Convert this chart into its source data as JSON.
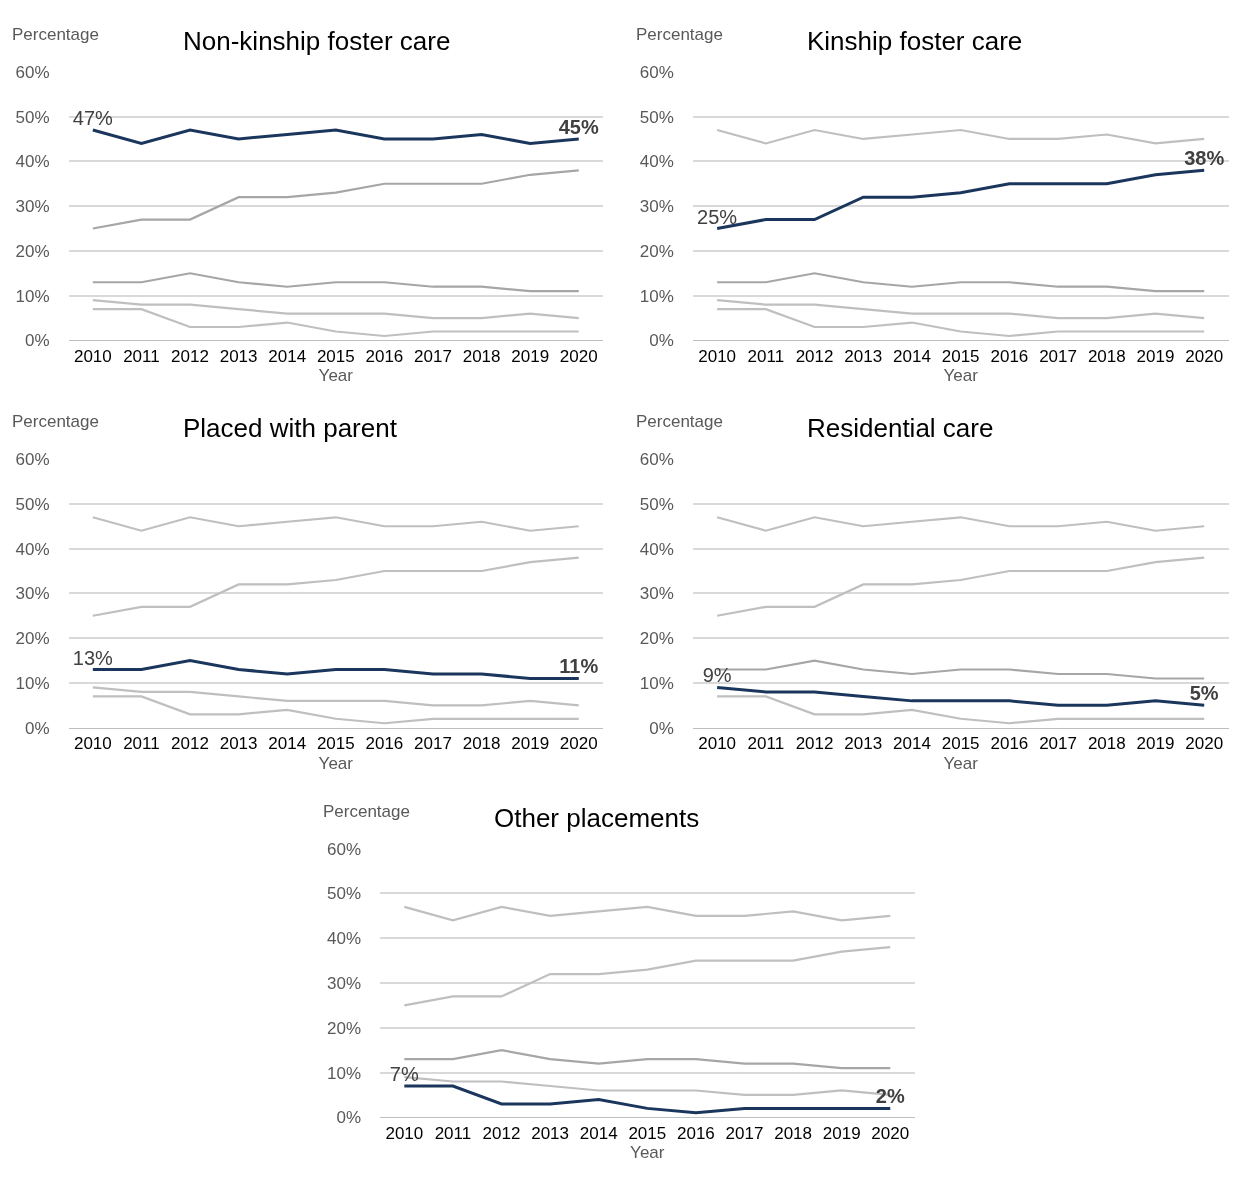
{
  "chart_data": [
    {
      "type": "line",
      "title": "Non-kinship foster care",
      "xlabel": "Year",
      "ylabel": "Percentage",
      "categories": [
        "2010",
        "2011",
        "2012",
        "2013",
        "2014",
        "2015",
        "2016",
        "2017",
        "2018",
        "2019",
        "2020"
      ],
      "ylim": [
        0,
        60
      ],
      "yticks": [
        {
          "value": 0,
          "label": "0%"
        },
        {
          "value": 10,
          "label": "10%"
        },
        {
          "value": 20,
          "label": "20%"
        },
        {
          "value": 30,
          "label": "30%"
        },
        {
          "value": 40,
          "label": "40%"
        },
        {
          "value": 50,
          "label": "50%"
        },
        {
          "value": 60,
          "label": "60%"
        }
      ],
      "grid": "y",
      "marker": "none",
      "line_style": "solid",
      "series": [
        {
          "color": "#a6a6a6",
          "values": [
            25,
            27,
            27,
            32,
            32,
            33,
            35,
            35,
            35,
            37,
            38
          ]
        },
        {
          "color": "#a6a6a6",
          "values": [
            13,
            13,
            15,
            13,
            12,
            13,
            13,
            12,
            12,
            11,
            11
          ]
        },
        {
          "color": "#bfbfbf",
          "values": [
            9,
            8,
            8,
            7,
            6,
            6,
            6,
            5,
            5,
            6,
            5
          ]
        },
        {
          "color": "#bfbfbf",
          "values": [
            7,
            7,
            3,
            3,
            4,
            2,
            1,
            2,
            2,
            2,
            2
          ]
        },
        {
          "color": "#1b365d",
          "values": [
            47,
            44,
            47,
            45,
            46,
            47,
            45,
            45,
            46,
            44,
            45
          ],
          "value_labels": [
            "47%",
            null,
            null,
            null,
            null,
            null,
            null,
            null,
            null,
            null,
            "45%"
          ]
        }
      ]
    },
    {
      "type": "line",
      "title": "Kinship foster care",
      "xlabel": "Year",
      "ylabel": "Percentage",
      "categories": [
        "2010",
        "2011",
        "2012",
        "2013",
        "2014",
        "2015",
        "2016",
        "2017",
        "2018",
        "2019",
        "2020"
      ],
      "ylim": [
        0,
        60
      ],
      "yticks": [
        {
          "value": 0,
          "label": "0%"
        },
        {
          "value": 10,
          "label": "10%"
        },
        {
          "value": 20,
          "label": "20%"
        },
        {
          "value": 30,
          "label": "30%"
        },
        {
          "value": 40,
          "label": "40%"
        },
        {
          "value": 50,
          "label": "50%"
        },
        {
          "value": 60,
          "label": "60%"
        }
      ],
      "grid": "y",
      "marker": "none",
      "line_style": "solid",
      "series": [
        {
          "color": "#bfbfbf",
          "values": [
            47,
            44,
            47,
            45,
            46,
            47,
            45,
            45,
            46,
            44,
            45
          ]
        },
        {
          "color": "#a6a6a6",
          "values": [
            13,
            13,
            15,
            13,
            12,
            13,
            13,
            12,
            12,
            11,
            11
          ]
        },
        {
          "color": "#bfbfbf",
          "values": [
            9,
            8,
            8,
            7,
            6,
            6,
            6,
            5,
            5,
            6,
            5
          ]
        },
        {
          "color": "#bfbfbf",
          "values": [
            7,
            7,
            3,
            3,
            4,
            2,
            1,
            2,
            2,
            2,
            2
          ]
        },
        {
          "color": "#1b365d",
          "values": [
            25,
            27,
            27,
            32,
            32,
            33,
            35,
            35,
            35,
            37,
            38
          ],
          "value_labels": [
            "25%",
            null,
            null,
            null,
            null,
            null,
            null,
            null,
            null,
            null,
            "38%"
          ]
        }
      ]
    },
    {
      "type": "line",
      "title": "Placed with parent",
      "xlabel": "Year",
      "ylabel": "Percentage",
      "categories": [
        "2010",
        "2011",
        "2012",
        "2013",
        "2014",
        "2015",
        "2016",
        "2017",
        "2018",
        "2019",
        "2020"
      ],
      "ylim": [
        0,
        60
      ],
      "yticks": [
        {
          "value": 0,
          "label": "0%"
        },
        {
          "value": 10,
          "label": "10%"
        },
        {
          "value": 20,
          "label": "20%"
        },
        {
          "value": 30,
          "label": "30%"
        },
        {
          "value": 40,
          "label": "40%"
        },
        {
          "value": 50,
          "label": "50%"
        },
        {
          "value": 60,
          "label": "60%"
        }
      ],
      "grid": "y",
      "marker": "none",
      "line_style": "solid",
      "series": [
        {
          "color": "#bfbfbf",
          "values": [
            47,
            44,
            47,
            45,
            46,
            47,
            45,
            45,
            46,
            44,
            45
          ]
        },
        {
          "color": "#bfbfbf",
          "values": [
            25,
            27,
            27,
            32,
            32,
            33,
            35,
            35,
            35,
            37,
            38
          ]
        },
        {
          "color": "#bfbfbf",
          "values": [
            9,
            8,
            8,
            7,
            6,
            6,
            6,
            5,
            5,
            6,
            5
          ]
        },
        {
          "color": "#bfbfbf",
          "values": [
            7,
            7,
            3,
            3,
            4,
            2,
            1,
            2,
            2,
            2,
            2
          ]
        },
        {
          "color": "#1b365d",
          "values": [
            13,
            13,
            15,
            13,
            12,
            13,
            13,
            12,
            12,
            11,
            11
          ],
          "value_labels": [
            "13%",
            null,
            null,
            null,
            null,
            null,
            null,
            null,
            null,
            null,
            "11%"
          ]
        }
      ]
    },
    {
      "type": "line",
      "title": "Residential care",
      "xlabel": "Year",
      "ylabel": "Percentage",
      "categories": [
        "2010",
        "2011",
        "2012",
        "2013",
        "2014",
        "2015",
        "2016",
        "2017",
        "2018",
        "2019",
        "2020"
      ],
      "ylim": [
        0,
        60
      ],
      "yticks": [
        {
          "value": 0,
          "label": "0%"
        },
        {
          "value": 10,
          "label": "10%"
        },
        {
          "value": 20,
          "label": "20%"
        },
        {
          "value": 30,
          "label": "30%"
        },
        {
          "value": 40,
          "label": "40%"
        },
        {
          "value": 50,
          "label": "50%"
        },
        {
          "value": 60,
          "label": "60%"
        }
      ],
      "grid": "y",
      "marker": "none",
      "line_style": "solid",
      "series": [
        {
          "color": "#bfbfbf",
          "values": [
            47,
            44,
            47,
            45,
            46,
            47,
            45,
            45,
            46,
            44,
            45
          ]
        },
        {
          "color": "#bfbfbf",
          "values": [
            25,
            27,
            27,
            32,
            32,
            33,
            35,
            35,
            35,
            37,
            38
          ]
        },
        {
          "color": "#a6a6a6",
          "values": [
            13,
            13,
            15,
            13,
            12,
            13,
            13,
            12,
            12,
            11,
            11
          ]
        },
        {
          "color": "#bfbfbf",
          "values": [
            7,
            7,
            3,
            3,
            4,
            2,
            1,
            2,
            2,
            2,
            2
          ]
        },
        {
          "color": "#1b365d",
          "values": [
            9,
            8,
            8,
            7,
            6,
            6,
            6,
            5,
            5,
            6,
            5
          ],
          "value_labels": [
            "9%",
            null,
            null,
            null,
            null,
            null,
            null,
            null,
            null,
            null,
            "5%"
          ]
        }
      ]
    },
    {
      "type": "line",
      "title": "Other placements",
      "xlabel": "Year",
      "ylabel": "Percentage",
      "categories": [
        "2010",
        "2011",
        "2012",
        "2013",
        "2014",
        "2015",
        "2016",
        "2017",
        "2018",
        "2019",
        "2020"
      ],
      "ylim": [
        0,
        60
      ],
      "yticks": [
        {
          "value": 0,
          "label": "0%"
        },
        {
          "value": 10,
          "label": "10%"
        },
        {
          "value": 20,
          "label": "20%"
        },
        {
          "value": 30,
          "label": "30%"
        },
        {
          "value": 40,
          "label": "40%"
        },
        {
          "value": 50,
          "label": "50%"
        },
        {
          "value": 60,
          "label": "60%"
        }
      ],
      "grid": "y",
      "marker": "none",
      "line_style": "solid",
      "series": [
        {
          "color": "#bfbfbf",
          "values": [
            47,
            44,
            47,
            45,
            46,
            47,
            45,
            45,
            46,
            44,
            45
          ]
        },
        {
          "color": "#bfbfbf",
          "values": [
            25,
            27,
            27,
            32,
            32,
            33,
            35,
            35,
            35,
            37,
            38
          ]
        },
        {
          "color": "#a6a6a6",
          "values": [
            13,
            13,
            15,
            13,
            12,
            13,
            13,
            12,
            12,
            11,
            11
          ]
        },
        {
          "color": "#bfbfbf",
          "values": [
            9,
            8,
            8,
            7,
            6,
            6,
            6,
            5,
            5,
            6,
            5
          ]
        },
        {
          "color": "#1b365d",
          "values": [
            7,
            7,
            3,
            3,
            4,
            2,
            1,
            2,
            2,
            2,
            2
          ],
          "value_labels": [
            "7%",
            null,
            null,
            null,
            null,
            null,
            null,
            null,
            null,
            null,
            "2%"
          ]
        }
      ]
    }
  ]
}
